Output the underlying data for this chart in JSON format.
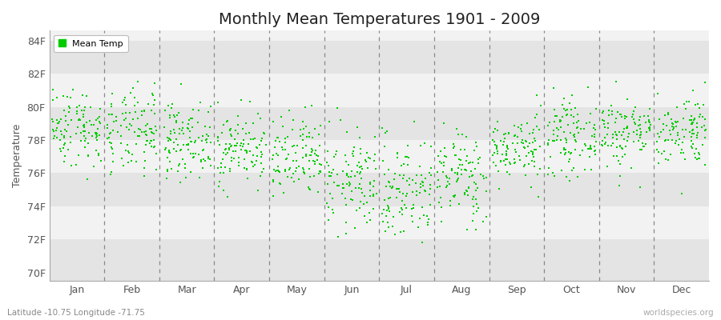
{
  "title": "Monthly Mean Temperatures 1901 - 2009",
  "ylabel": "Temperature",
  "xlabel": "",
  "marker_color": "#00CC00",
  "background_color": "#FFFFFF",
  "plot_bg_light": "#F2F2F2",
  "plot_bg_dark": "#E4E4E4",
  "dashed_line_color": "#888888",
  "ylim_min": 69.5,
  "ylim_max": 84.6,
  "yticks": [
    70,
    72,
    74,
    76,
    78,
    80,
    82,
    84
  ],
  "ytick_labels": [
    "70F",
    "72F",
    "74F",
    "76F",
    "78F",
    "80F",
    "82F",
    "84F"
  ],
  "months": [
    "Jan",
    "Feb",
    "Mar",
    "Apr",
    "May",
    "Jun",
    "Jul",
    "Aug",
    "Sep",
    "Oct",
    "Nov",
    "Dec"
  ],
  "legend_label": "Mean Temp",
  "subtitle_left": "Latitude -10.75 Longitude -71.75",
  "subtitle_right": "worldspecies.org",
  "title_fontsize": 14,
  "axis_fontsize": 9,
  "tick_fontsize": 9,
  "legend_fontsize": 8,
  "seed": 42,
  "n_years": 109,
  "temp_means": [
    78.8,
    78.4,
    78.0,
    77.5,
    76.8,
    75.5,
    75.0,
    75.8,
    77.5,
    78.2,
    78.5,
    78.6
  ],
  "temp_stds": [
    1.2,
    1.3,
    1.1,
    1.1,
    1.3,
    1.5,
    1.6,
    1.4,
    1.0,
    1.1,
    1.1,
    1.1
  ]
}
